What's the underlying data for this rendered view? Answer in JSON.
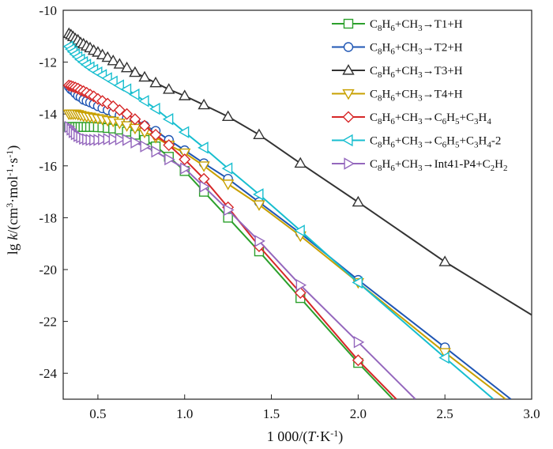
{
  "chart_data": {
    "type": "line",
    "title": "",
    "xlabel": "1 000/(T·K⁻¹)",
    "ylabel": "lg k/(cm³·mol⁻¹·s⁻¹)",
    "xlim": [
      0.3,
      3.0
    ],
    "ylim": [
      -25,
      -10
    ],
    "xticks": [
      "0.5",
      "1.0",
      "1.5",
      "2.0",
      "2.5",
      "3.0"
    ],
    "xtick_values": [
      0.5,
      1.0,
      1.5,
      2.0,
      2.5,
      3.0
    ],
    "yticks": [
      "-10",
      "-12",
      "-14",
      "-16",
      "-18",
      "-20",
      "-22",
      "-24"
    ],
    "ytick_values": [
      -10,
      -12,
      -14,
      -16,
      -18,
      -20,
      -22,
      -24
    ],
    "legend_position": "top-right",
    "marker_x": [
      0.333,
      0.345,
      0.357,
      0.37,
      0.385,
      0.4,
      0.417,
      0.435,
      0.455,
      0.476,
      0.5,
      0.526,
      0.556,
      0.588,
      0.625,
      0.667,
      0.714,
      0.769,
      0.833,
      0.909,
      1.0,
      1.111,
      1.25,
      1.429,
      1.667,
      2.0,
      2.5
    ],
    "series": [
      {
        "name": "C8H6+CH3→T1+H",
        "label_parts": [
          [
            "C",
            ""
          ],
          [
            "8",
            "sub"
          ],
          [
            "H",
            ""
          ],
          [
            "6",
            "sub"
          ],
          [
            "+CH",
            ""
          ],
          [
            "3",
            "sub"
          ],
          [
            "→T1+H",
            ""
          ]
        ],
        "color": "#2ca02c",
        "marker": "square",
        "x": [
          0.333,
          0.345,
          0.357,
          0.37,
          0.385,
          0.4,
          0.417,
          0.435,
          0.455,
          0.476,
          0.5,
          0.526,
          0.556,
          0.588,
          0.625,
          0.667,
          0.714,
          0.769,
          0.833,
          0.909,
          1.0,
          1.111,
          1.25,
          1.429,
          1.667,
          2.0,
          2.2
        ],
        "y": [
          -14.5,
          -14.5,
          -14.5,
          -14.5,
          -14.5,
          -14.5,
          -14.5,
          -14.5,
          -14.5,
          -14.5,
          -14.51,
          -14.52,
          -14.54,
          -14.56,
          -14.6,
          -14.68,
          -14.8,
          -15.0,
          -15.25,
          -15.65,
          -16.2,
          -17.0,
          -18.0,
          -19.3,
          -21.1,
          -23.6,
          -25.0
        ]
      },
      {
        "name": "C8H6+CH3→T2+H",
        "label_parts": [
          [
            "C",
            ""
          ],
          [
            "8",
            "sub"
          ],
          [
            "H",
            ""
          ],
          [
            "6",
            "sub"
          ],
          [
            "+CH",
            ""
          ],
          [
            "3",
            "sub"
          ],
          [
            "→T2+H",
            ""
          ]
        ],
        "color": "#1f56b4",
        "marker": "circle",
        "x": [
          0.333,
          0.345,
          0.357,
          0.37,
          0.385,
          0.4,
          0.417,
          0.435,
          0.455,
          0.476,
          0.5,
          0.526,
          0.556,
          0.588,
          0.625,
          0.667,
          0.714,
          0.769,
          0.833,
          0.909,
          1.0,
          1.111,
          1.25,
          1.429,
          1.667,
          2.0,
          2.5,
          2.88
        ],
        "y": [
          -12.95,
          -13.05,
          -13.1,
          -13.2,
          -13.3,
          -13.35,
          -13.45,
          -13.5,
          -13.55,
          -13.62,
          -13.7,
          -13.78,
          -13.85,
          -13.95,
          -14.05,
          -14.15,
          -14.3,
          -14.45,
          -14.65,
          -15.0,
          -15.4,
          -15.9,
          -16.5,
          -17.4,
          -18.6,
          -20.4,
          -23.0,
          -25.0
        ]
      },
      {
        "name": "C8H6+CH3→T3+H",
        "label_parts": [
          [
            "C",
            ""
          ],
          [
            "8",
            "sub"
          ],
          [
            "H",
            ""
          ],
          [
            "6",
            "sub"
          ],
          [
            "+CH",
            ""
          ],
          [
            "3",
            "sub"
          ],
          [
            "→T3+H",
            ""
          ]
        ],
        "color": "#333333",
        "marker": "triangle-up",
        "x": [
          0.333,
          0.345,
          0.357,
          0.37,
          0.385,
          0.4,
          0.417,
          0.435,
          0.455,
          0.476,
          0.5,
          0.526,
          0.556,
          0.588,
          0.625,
          0.667,
          0.714,
          0.769,
          0.833,
          0.909,
          1.0,
          1.111,
          1.25,
          1.429,
          1.667,
          2.0,
          2.5,
          3.0
        ],
        "y": [
          -10.9,
          -10.95,
          -11.02,
          -11.1,
          -11.15,
          -11.25,
          -11.3,
          -11.38,
          -11.45,
          -11.55,
          -11.62,
          -11.72,
          -11.82,
          -11.95,
          -12.08,
          -12.22,
          -12.4,
          -12.58,
          -12.8,
          -13.05,
          -13.3,
          -13.65,
          -14.1,
          -14.8,
          -15.9,
          -17.4,
          -19.7,
          -21.75
        ]
      },
      {
        "name": "C8H6+CH3→T4+H",
        "label_parts": [
          [
            "C",
            ""
          ],
          [
            "8",
            "sub"
          ],
          [
            "H",
            ""
          ],
          [
            "6",
            "sub"
          ],
          [
            "+CH",
            ""
          ],
          [
            "3",
            "sub"
          ],
          [
            "→T4+H",
            ""
          ]
        ],
        "color": "#c8a000",
        "marker": "triangle-down",
        "x": [
          0.333,
          0.345,
          0.357,
          0.37,
          0.385,
          0.4,
          0.417,
          0.435,
          0.455,
          0.476,
          0.5,
          0.526,
          0.556,
          0.588,
          0.625,
          0.667,
          0.714,
          0.769,
          0.833,
          0.909,
          1.0,
          1.111,
          1.25,
          1.429,
          1.667,
          2.0,
          2.5,
          2.85
        ],
        "y": [
          -14.0,
          -14.0,
          -14.0,
          -14.0,
          -14.02,
          -14.05,
          -14.08,
          -14.1,
          -14.12,
          -14.15,
          -14.18,
          -14.2,
          -14.25,
          -14.28,
          -14.35,
          -14.45,
          -14.55,
          -14.7,
          -14.9,
          -15.2,
          -15.5,
          -16.0,
          -16.7,
          -17.5,
          -18.7,
          -20.5,
          -23.2,
          -25.0
        ]
      },
      {
        "name": "C8H6+CH3→C6H5+C3H4",
        "label_parts": [
          [
            "C",
            ""
          ],
          [
            "8",
            "sub"
          ],
          [
            "H",
            ""
          ],
          [
            "6",
            "sub"
          ],
          [
            "+CH",
            ""
          ],
          [
            "3",
            "sub"
          ],
          [
            "→C",
            ""
          ],
          [
            "6",
            "sub"
          ],
          [
            "H",
            ""
          ],
          [
            "5",
            "sub"
          ],
          [
            "+C",
            ""
          ],
          [
            "3",
            "sub"
          ],
          [
            "H",
            ""
          ],
          [
            "4",
            "sub"
          ]
        ],
        "color": "#d62728",
        "marker": "diamond",
        "x": [
          0.333,
          0.345,
          0.357,
          0.37,
          0.385,
          0.4,
          0.417,
          0.435,
          0.455,
          0.476,
          0.5,
          0.526,
          0.556,
          0.588,
          0.625,
          0.667,
          0.714,
          0.769,
          0.833,
          0.909,
          1.0,
          1.111,
          1.25,
          1.429,
          1.667,
          2.0,
          2.22
        ],
        "y": [
          -12.9,
          -12.92,
          -12.95,
          -12.98,
          -13.02,
          -13.08,
          -13.12,
          -13.18,
          -13.25,
          -13.32,
          -13.42,
          -13.5,
          -13.6,
          -13.7,
          -13.85,
          -14.0,
          -14.2,
          -14.45,
          -14.8,
          -15.2,
          -15.75,
          -16.5,
          -17.6,
          -19.1,
          -20.9,
          -23.5,
          -25.0
        ]
      },
      {
        "name": "C8H6+CH3→C6H5+C3H4-2",
        "label_parts": [
          [
            "C",
            ""
          ],
          [
            "8",
            "sub"
          ],
          [
            "H",
            ""
          ],
          [
            "6",
            "sub"
          ],
          [
            "+CH",
            ""
          ],
          [
            "3",
            "sub"
          ],
          [
            "→C",
            ""
          ],
          [
            "6",
            "sub"
          ],
          [
            "H",
            ""
          ],
          [
            "5",
            "sub"
          ],
          [
            "+C",
            ""
          ],
          [
            "3",
            "sub"
          ],
          [
            "H",
            ""
          ],
          [
            "4",
            "sub"
          ],
          [
            "-2",
            ""
          ]
        ],
        "color": "#17becf",
        "marker": "triangle-left",
        "x": [
          0.333,
          0.345,
          0.357,
          0.37,
          0.385,
          0.4,
          0.417,
          0.435,
          0.455,
          0.476,
          0.5,
          0.526,
          0.556,
          0.588,
          0.625,
          0.667,
          0.714,
          0.769,
          0.833,
          0.909,
          1.0,
          1.111,
          1.25,
          1.429,
          1.667,
          2.0,
          2.5,
          2.78
        ],
        "y": [
          -11.4,
          -11.5,
          -11.6,
          -11.7,
          -11.8,
          -11.9,
          -12.0,
          -12.1,
          -12.2,
          -12.3,
          -12.4,
          -12.5,
          -12.62,
          -12.75,
          -12.9,
          -13.05,
          -13.25,
          -13.5,
          -13.8,
          -14.2,
          -14.7,
          -15.3,
          -16.1,
          -17.1,
          -18.5,
          -20.5,
          -23.4,
          -25.0
        ]
      },
      {
        "name": "C8H6+CH3→Int41-P4+C2H2",
        "label_parts": [
          [
            "C",
            ""
          ],
          [
            "8",
            "sub"
          ],
          [
            "H",
            ""
          ],
          [
            "6",
            "sub"
          ],
          [
            "+CH",
            ""
          ],
          [
            "3",
            "sub"
          ],
          [
            "→Int41-P4+C",
            ""
          ],
          [
            "2",
            "sub"
          ],
          [
            "H",
            ""
          ],
          [
            "2",
            "sub"
          ]
        ],
        "color": "#9467bd",
        "marker": "triangle-right",
        "x": [
          0.333,
          0.345,
          0.357,
          0.37,
          0.385,
          0.4,
          0.417,
          0.435,
          0.455,
          0.476,
          0.5,
          0.526,
          0.556,
          0.588,
          0.625,
          0.667,
          0.714,
          0.769,
          0.833,
          0.909,
          1.0,
          1.111,
          1.25,
          1.429,
          1.667,
          2.0,
          2.33
        ],
        "y": [
          -14.5,
          -14.6,
          -14.7,
          -14.78,
          -14.85,
          -14.9,
          -14.95,
          -14.98,
          -15.0,
          -15.0,
          -15.0,
          -14.98,
          -14.97,
          -14.97,
          -14.98,
          -15.0,
          -15.1,
          -15.25,
          -15.45,
          -15.75,
          -16.1,
          -16.8,
          -17.7,
          -18.9,
          -20.6,
          -22.8,
          -25.0
        ]
      }
    ]
  }
}
